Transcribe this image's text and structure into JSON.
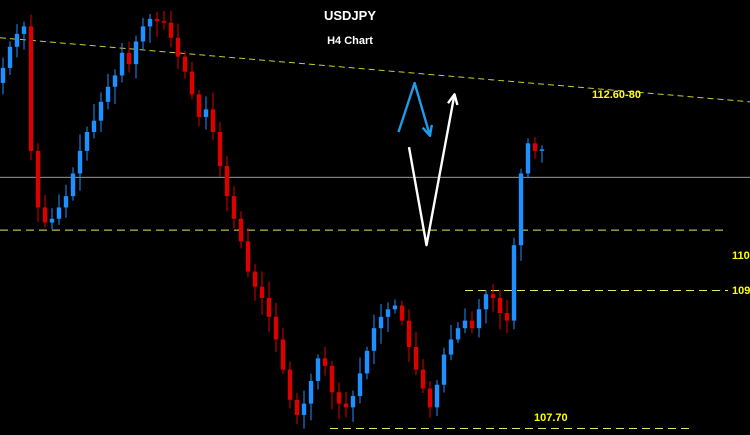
{
  "chart_data": {
    "type": "candlestick",
    "title": "USDJPY",
    "subtitle": "H4 Chart",
    "ylim": [
      107.6,
      113.3
    ],
    "candle_count": 78,
    "colors": {
      "background": "#000000",
      "bullish": "#1e90ff",
      "bearish": "#dd0000",
      "trendline": "#cccc33",
      "support_line": "#e5e560",
      "current_price_line": "#cccccc",
      "forecast_blue": "#1e9be9",
      "forecast_white": "#ffffff",
      "label": "#ffff00"
    },
    "closes": [
      112.4,
      112.68,
      112.85,
      112.95,
      111.3,
      110.55,
      110.35,
      110.4,
      110.55,
      110.7,
      111.0,
      111.3,
      111.55,
      111.7,
      111.95,
      112.15,
      112.3,
      112.6,
      112.45,
      112.75,
      112.95,
      113.05,
      113.02,
      113.0,
      112.8,
      112.55,
      112.35,
      112.05,
      111.75,
      111.85,
      111.55,
      111.1,
      110.7,
      110.4,
      110.1,
      109.7,
      109.5,
      109.35,
      109.1,
      108.8,
      108.4,
      108.0,
      107.8,
      107.95,
      108.25,
      108.55,
      108.45,
      108.1,
      107.95,
      107.9,
      108.05,
      108.35,
      108.65,
      108.95,
      109.1,
      109.2,
      109.25,
      109.05,
      108.7,
      108.4,
      108.15,
      107.9,
      108.2,
      108.6,
      108.8,
      108.95,
      109.05,
      108.95,
      109.2,
      109.4,
      109.35,
      109.15,
      109.05,
      110.05,
      111.0,
      111.4,
      111.3,
      111.32
    ],
    "lines": {
      "trendline": {
        "from": [
          0,
          112.8
        ],
        "to": [
          83,
          111.95
        ]
      },
      "current_price": 110.95,
      "support_110": {
        "value": 110.25,
        "label": "110"
      },
      "support_109": {
        "value": 109.45,
        "label": "109"
      },
      "support_107": {
        "value": 107.62,
        "label": "107.70"
      }
    },
    "annotations": [
      {
        "text": "112.60-80",
        "color": "#ffff00"
      }
    ],
    "forecast": {
      "blue": [
        [
          56.5,
          111.55
        ],
        [
          58.8,
          112.2
        ],
        [
          61.0,
          111.5
        ]
      ],
      "white": [
        [
          58.0,
          111.35
        ],
        [
          60.5,
          110.05
        ],
        [
          64.5,
          112.05
        ]
      ]
    }
  }
}
